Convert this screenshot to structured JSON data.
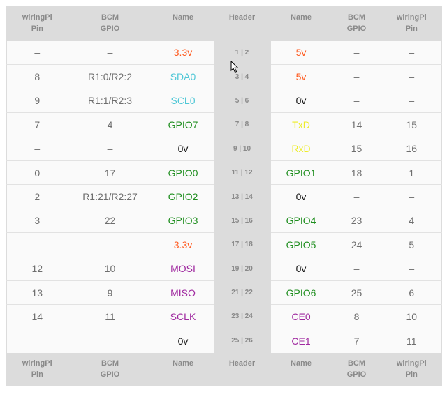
{
  "colors": {
    "power_3v3": "#ff5a1f",
    "power_5v": "#ff5a1f",
    "i2c": "#4fc7d6",
    "uart": "#eded2a",
    "ground": "#111111",
    "gpio": "#1f8e1f",
    "spi": "#a02aa0"
  },
  "headers": {
    "wiringpi_line1": "wiringPi",
    "wiringpi_line2": "Pin",
    "bcm_line1": "BCM",
    "bcm_line2": "GPIO",
    "name": "Name",
    "header": "Header"
  },
  "rows": [
    {
      "wpi_l": "–",
      "bcm_l": "–",
      "name_l": "3.3v",
      "color_l": "power_3v3",
      "header": "1 | 2",
      "name_r": "5v",
      "color_r": "power_5v",
      "bcm_r": "–",
      "wpi_r": "–"
    },
    {
      "wpi_l": "8",
      "bcm_l": "R1:0/R2:2",
      "name_l": "SDA0",
      "color_l": "i2c",
      "header": "3 | 4",
      "name_r": "5v",
      "color_r": "power_5v",
      "bcm_r": "–",
      "wpi_r": "–"
    },
    {
      "wpi_l": "9",
      "bcm_l": "R1:1/R2:3",
      "name_l": "SCL0",
      "color_l": "i2c",
      "header": "5 | 6",
      "name_r": "0v",
      "color_r": "ground",
      "bcm_r": "–",
      "wpi_r": "–"
    },
    {
      "wpi_l": "7",
      "bcm_l": "4",
      "name_l": "GPIO7",
      "color_l": "gpio",
      "header": "7 | 8",
      "name_r": "TxD",
      "color_r": "uart",
      "bcm_r": "14",
      "wpi_r": "15"
    },
    {
      "wpi_l": "–",
      "bcm_l": "–",
      "name_l": "0v",
      "color_l": "ground",
      "header": "9 | 10",
      "name_r": "RxD",
      "color_r": "uart",
      "bcm_r": "15",
      "wpi_r": "16"
    },
    {
      "wpi_l": "0",
      "bcm_l": "17",
      "name_l": "GPIO0",
      "color_l": "gpio",
      "header": "11 | 12",
      "name_r": "GPIO1",
      "color_r": "gpio",
      "bcm_r": "18",
      "wpi_r": "1"
    },
    {
      "wpi_l": "2",
      "bcm_l": "R1:21/R2:27",
      "name_l": "GPIO2",
      "color_l": "gpio",
      "header": "13 | 14",
      "name_r": "0v",
      "color_r": "ground",
      "bcm_r": "–",
      "wpi_r": "–"
    },
    {
      "wpi_l": "3",
      "bcm_l": "22",
      "name_l": "GPIO3",
      "color_l": "gpio",
      "header": "15 | 16",
      "name_r": "GPIO4",
      "color_r": "gpio",
      "bcm_r": "23",
      "wpi_r": "4"
    },
    {
      "wpi_l": "–",
      "bcm_l": "–",
      "name_l": "3.3v",
      "color_l": "power_3v3",
      "header": "17 | 18",
      "name_r": "GPIO5",
      "color_r": "gpio",
      "bcm_r": "24",
      "wpi_r": "5"
    },
    {
      "wpi_l": "12",
      "bcm_l": "10",
      "name_l": "MOSI",
      "color_l": "spi",
      "header": "19 | 20",
      "name_r": "0v",
      "color_r": "ground",
      "bcm_r": "–",
      "wpi_r": "–"
    },
    {
      "wpi_l": "13",
      "bcm_l": "9",
      "name_l": "MISO",
      "color_l": "spi",
      "header": "21 | 22",
      "name_r": "GPIO6",
      "color_r": "gpio",
      "bcm_r": "25",
      "wpi_r": "6"
    },
    {
      "wpi_l": "14",
      "bcm_l": "11",
      "name_l": "SCLK",
      "color_l": "spi",
      "header": "23 | 24",
      "name_r": "CE0",
      "color_r": "spi",
      "bcm_r": "8",
      "wpi_r": "10"
    },
    {
      "wpi_l": "–",
      "bcm_l": "–",
      "name_l": "0v",
      "color_l": "ground",
      "header": "25 | 26",
      "name_r": "CE1",
      "color_r": "spi",
      "bcm_r": "7",
      "wpi_r": "11"
    }
  ],
  "cursor_icon": "mouse-pointer-icon"
}
